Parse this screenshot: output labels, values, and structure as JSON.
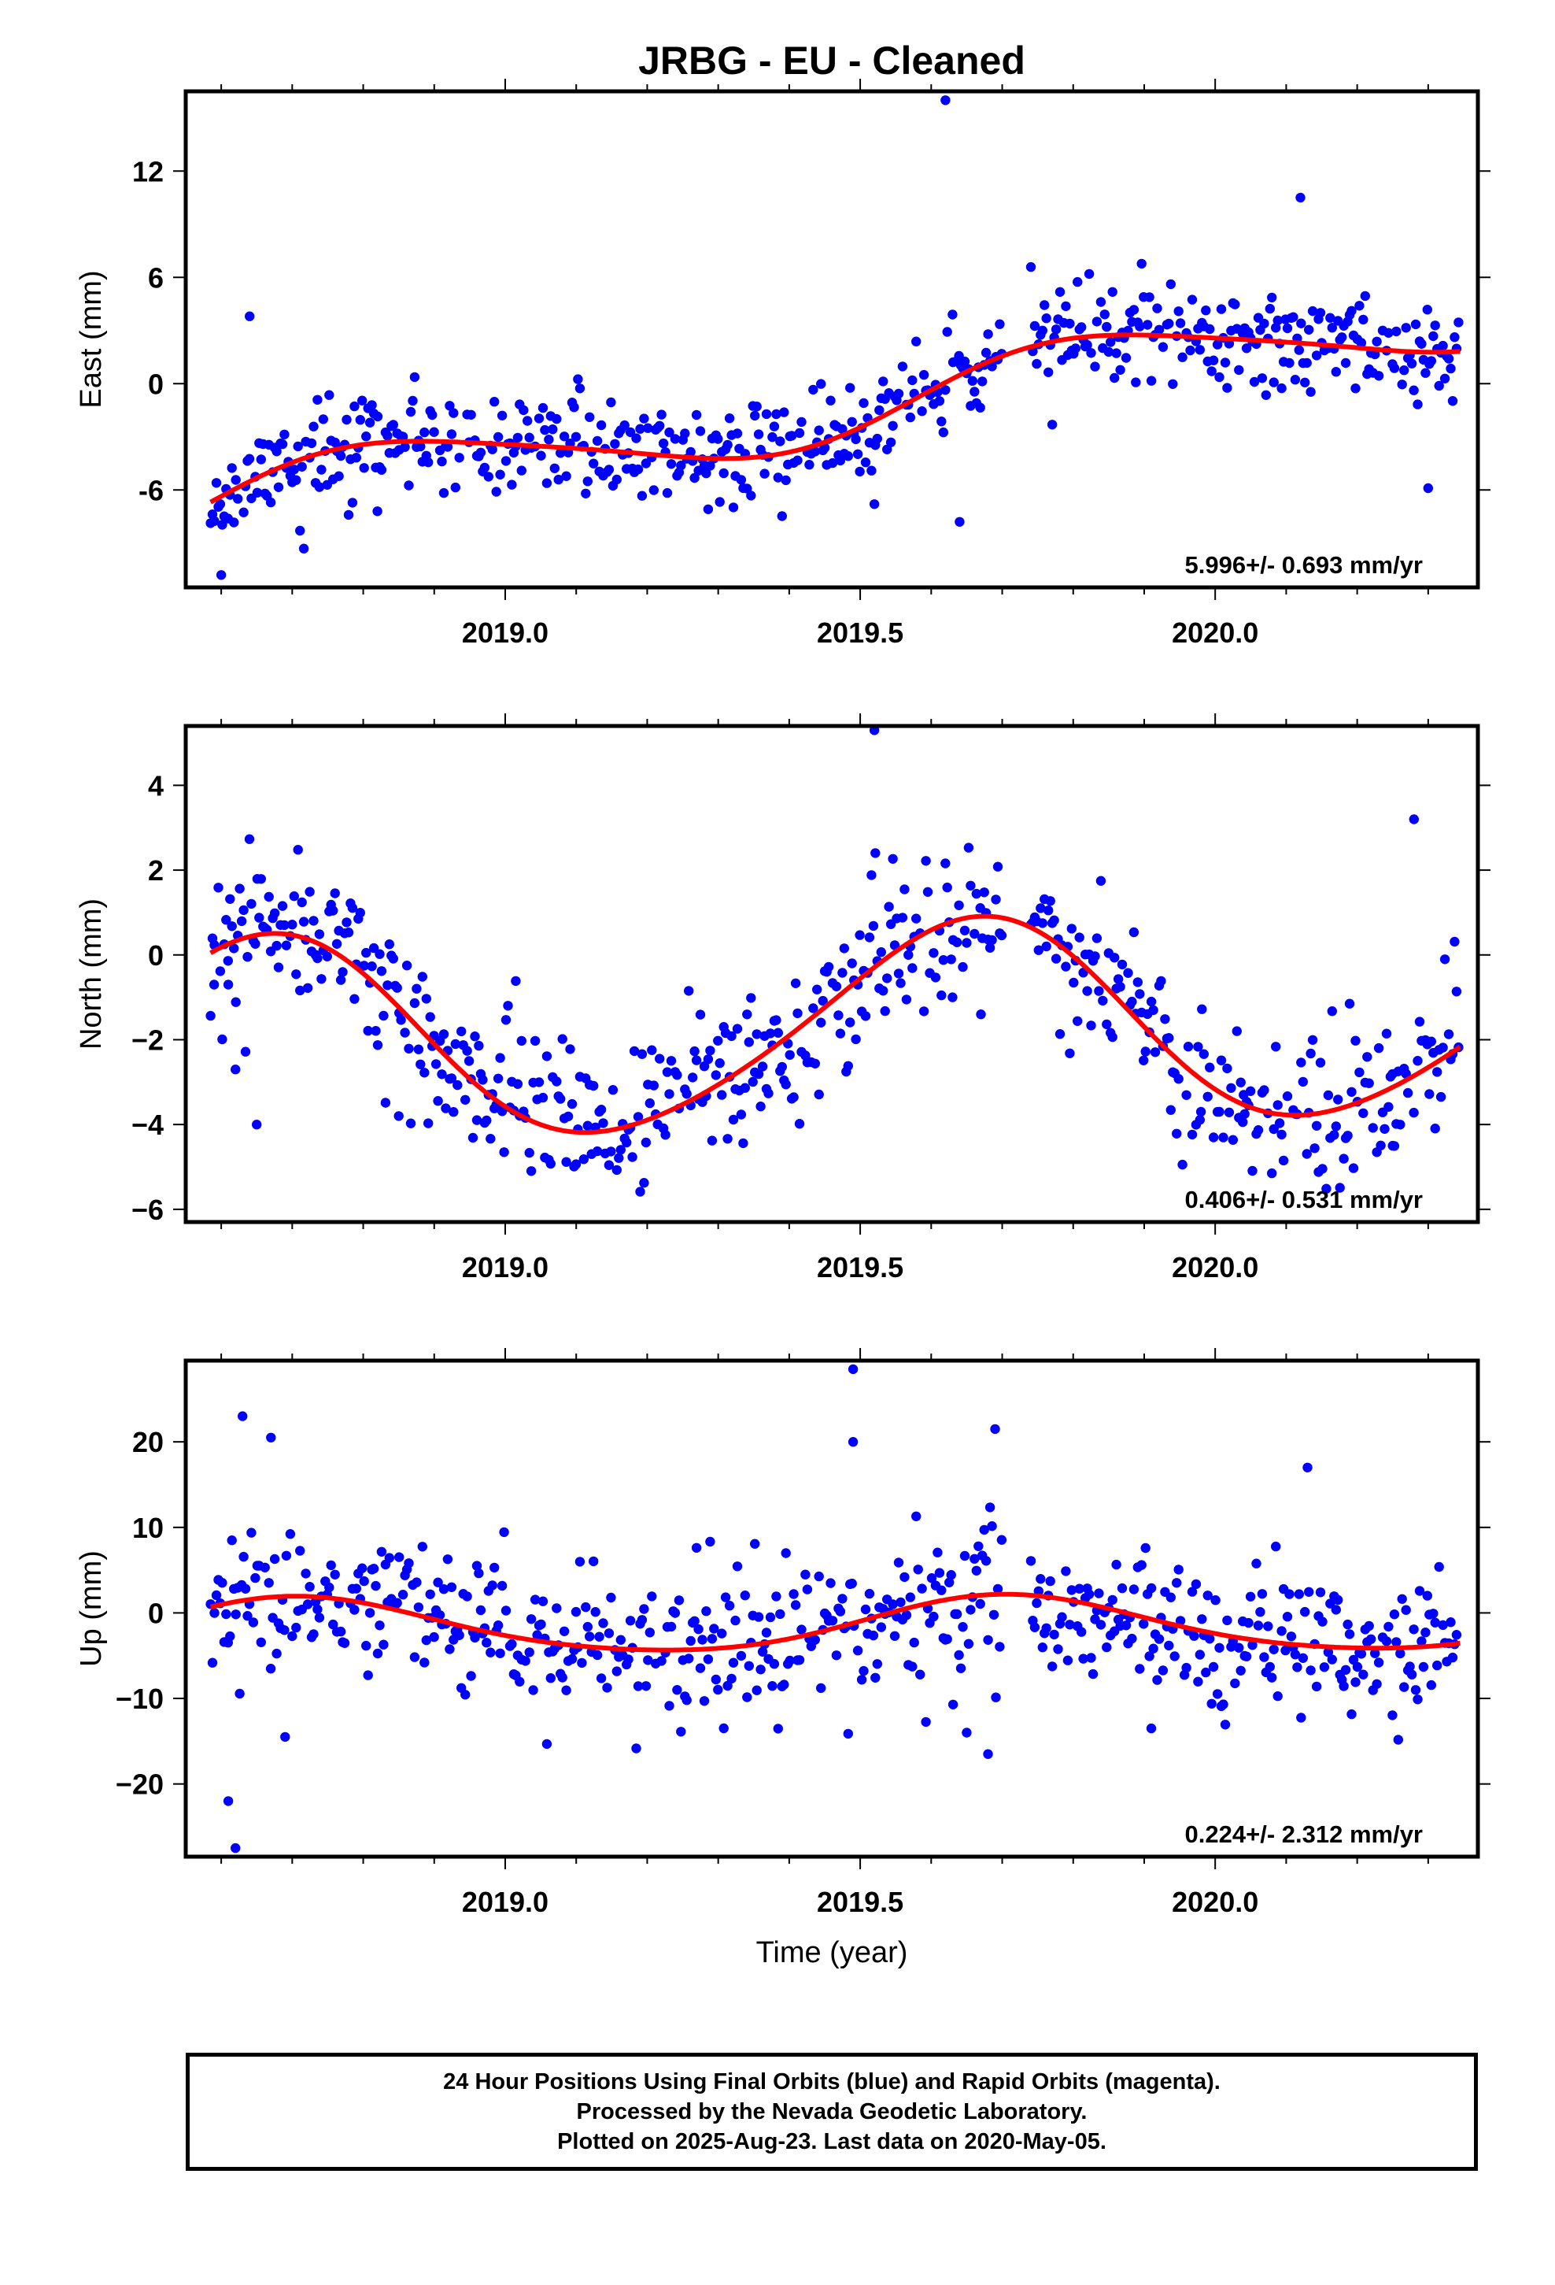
{
  "title": "JRBG  - EU - Cleaned",
  "colors": {
    "final_orbits": "#0000ff",
    "model_fit": "#ff0000",
    "frame": "#000000"
  },
  "footer": {
    "line1": "24 Hour Positions Using Final Orbits (blue) and Rapid Orbits (magenta).",
    "line2": "Processed by the Nevada Geodetic Laboratory.",
    "line3": "Plotted on 2025-Aug-23. Last data on 2020-May-05."
  },
  "chart_data": [
    {
      "type": "scatter",
      "id": "east",
      "ylabel": "East (mm)",
      "xlabel": "",
      "xlim": [
        2018.55,
        2020.37
      ],
      "ylim": [
        -11.5,
        16.5
      ],
      "yticks": [
        -6,
        0,
        6,
        12
      ],
      "xticks": [
        2019.0,
        2019.5,
        2020.0
      ],
      "x_tick_labels": [
        "2019.0",
        "2019.5",
        "2020.0"
      ],
      "y_tick_labels": [
        "-6",
        "0",
        "6",
        "12"
      ],
      "rate_label": "5.996+/- 0.693 mm/yr",
      "trend": {
        "start_year": 2018.58,
        "start": -6.8,
        "rate": 6.0,
        "amp1": 1.95,
        "phase1": -0.05,
        "amp2": 0.3,
        "phase2": 0.1
      },
      "scatter": {
        "sigma": 1.35,
        "seed": 11,
        "gap_start": 2019.7,
        "gap_end": 2019.74
      },
      "outliers": [
        [
          2018.6,
          -10.8
        ],
        [
          2018.64,
          3.8
        ],
        [
          2018.82,
          -7.2
        ],
        [
          2019.62,
          16.0
        ],
        [
          2019.52,
          -6.8
        ],
        [
          2019.63,
          3.9
        ],
        [
          2019.64,
          -7.8
        ],
        [
          2020.12,
          10.5
        ],
        [
          2020.3,
          -5.9
        ],
        [
          2020.15,
          2.3
        ]
      ]
    },
    {
      "type": "scatter",
      "id": "north",
      "ylabel": "North (mm)",
      "xlabel": "",
      "xlim": [
        2018.55,
        2020.37
      ],
      "ylim": [
        -6.3,
        5.4
      ],
      "yticks": [
        -6,
        -4,
        -2,
        0,
        2,
        4
      ],
      "xticks": [
        2019.0,
        2019.5,
        2020.0
      ],
      "x_tick_labels": [
        "2019.0",
        "2019.5",
        "2020.0"
      ],
      "y_tick_labels": [
        "−6",
        "−4",
        "−2",
        "0",
        "2",
        "4"
      ],
      "rate_label": "0.406+/- 0.531 mm/yr",
      "trend": {
        "start_year": 2018.58,
        "start": 0.0,
        "rate": 0.406,
        "amp1": 2.4,
        "phase1": 1.13,
        "amp2": 0.25,
        "phase2": -0.3
      },
      "scatter": {
        "sigma": 0.95,
        "seed": 23,
        "gap_start": 2019.7,
        "gap_end": 2019.74
      },
      "outliers": [
        [
          2018.59,
          -0.7
        ],
        [
          2018.61,
          -0.7
        ],
        [
          2018.62,
          -2.7
        ],
        [
          2018.65,
          -4.0
        ],
        [
          2018.85,
          -3.8
        ],
        [
          2019.52,
          5.3
        ],
        [
          2019.63,
          -1.0
        ],
        [
          2019.67,
          -1.4
        ],
        [
          2019.98,
          -3.7
        ],
        [
          2020.04,
          -3.3
        ],
        [
          2020.28,
          3.2
        ],
        [
          2020.25,
          -4.5
        ]
      ]
    },
    {
      "type": "scatter",
      "id": "up",
      "ylabel": "Up (mm)",
      "xlabel": "Time (year)",
      "xlim": [
        2018.55,
        2020.37
      ],
      "ylim": [
        -28.5,
        29.5
      ],
      "yticks": [
        -20,
        -10,
        0,
        10,
        20
      ],
      "xticks": [
        2019.0,
        2019.5,
        2020.0
      ],
      "x_tick_labels": [
        "2019.0",
        "2019.5",
        "2020.0"
      ],
      "y_tick_labels": [
        "−20",
        "−10",
        "0",
        "10",
        "20"
      ],
      "rate_label": "0.224+/- 2.312 mm/yr",
      "trend": {
        "start_year": 2018.58,
        "start": 0.6,
        "rate": 0.224,
        "amp1": 3.2,
        "phase1": 0.75,
        "amp2": 0.4,
        "phase2": 0.2
      },
      "scatter": {
        "sigma": 4.3,
        "seed": 37,
        "gap_start": 2019.7,
        "gap_end": 2019.74
      },
      "outliers": [
        [
          2018.61,
          -22.0
        ],
        [
          2018.62,
          -27.5
        ],
        [
          2018.63,
          23.0
        ],
        [
          2018.67,
          20.5
        ],
        [
          2019.49,
          28.5
        ],
        [
          2019.49,
          20.0
        ],
        [
          2019.69,
          21.5
        ],
        [
          2019.65,
          -14.0
        ],
        [
          2019.68,
          -16.5
        ],
        [
          2019.91,
          -13.5
        ],
        [
          2020.13,
          17.0
        ],
        [
          2018.69,
          -14.5
        ]
      ]
    }
  ]
}
